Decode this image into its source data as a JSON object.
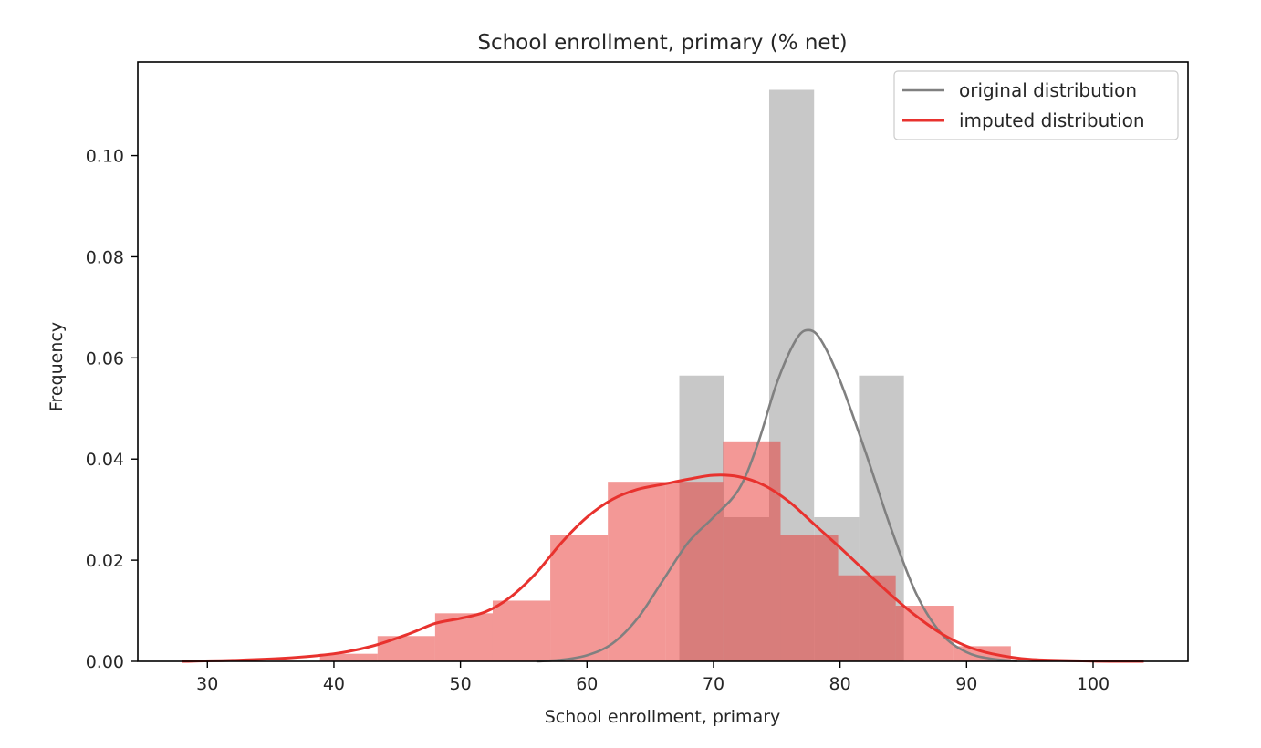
{
  "chart_data": {
    "type": "histogram",
    "title": "School enrollment, primary (% net)",
    "xlabel": "School enrollment, primary",
    "ylabel": "Frequency",
    "xlim": [
      24.5,
      107.5
    ],
    "ylim": [
      0,
      0.1185
    ],
    "xticks": [
      30,
      40,
      50,
      60,
      70,
      80,
      90,
      100
    ],
    "yticks": [
      0.0,
      0.02,
      0.04,
      0.06,
      0.08,
      0.1
    ],
    "ytick_labels": [
      "0.00",
      "0.02",
      "0.04",
      "0.06",
      "0.08",
      "0.10"
    ],
    "grid": false,
    "legend_position": "top-right",
    "series": [
      {
        "name": "original distribution",
        "color": "#808080",
        "hist_color": "#c8c8c8",
        "bins": [
          {
            "x0": 67.3,
            "x1": 70.85,
            "value": 0.0565
          },
          {
            "x0": 70.85,
            "x1": 74.4,
            "value": 0.0285
          },
          {
            "x0": 74.4,
            "x1": 77.95,
            "value": 0.113
          },
          {
            "x0": 77.95,
            "x1": 81.5,
            "value": 0.0285
          },
          {
            "x0": 81.5,
            "x1": 85.05,
            "value": 0.0565
          }
        ],
        "kde": [
          {
            "x": 56.0,
            "y": 0.0
          },
          {
            "x": 58.0,
            "y": 0.0003
          },
          {
            "x": 60.0,
            "y": 0.0012
          },
          {
            "x": 62.0,
            "y": 0.0035
          },
          {
            "x": 64.0,
            "y": 0.0085
          },
          {
            "x": 66.0,
            "y": 0.016
          },
          {
            "x": 68.0,
            "y": 0.0235
          },
          {
            "x": 70.0,
            "y": 0.0285
          },
          {
            "x": 72.0,
            "y": 0.034
          },
          {
            "x": 73.5,
            "y": 0.043
          },
          {
            "x": 75.0,
            "y": 0.055
          },
          {
            "x": 76.5,
            "y": 0.0635
          },
          {
            "x": 77.5,
            "y": 0.0655
          },
          {
            "x": 78.5,
            "y": 0.0635
          },
          {
            "x": 80.0,
            "y": 0.0555
          },
          {
            "x": 82.0,
            "y": 0.0415
          },
          {
            "x": 84.0,
            "y": 0.0265
          },
          {
            "x": 86.0,
            "y": 0.0135
          },
          {
            "x": 88.0,
            "y": 0.0055
          },
          {
            "x": 90.0,
            "y": 0.0018
          },
          {
            "x": 92.0,
            "y": 0.0005
          },
          {
            "x": 94.0,
            "y": 0.0001
          }
        ]
      },
      {
        "name": "imputed distribution",
        "color": "#e8322e",
        "hist_color": "#e8322e",
        "bins": [
          {
            "x0": 38.9,
            "x1": 43.45,
            "value": 0.0015
          },
          {
            "x0": 43.45,
            "x1": 48.0,
            "value": 0.005
          },
          {
            "x0": 48.0,
            "x1": 52.55,
            "value": 0.0095
          },
          {
            "x0": 52.55,
            "x1": 57.1,
            "value": 0.012
          },
          {
            "x0": 57.1,
            "x1": 61.65,
            "value": 0.025
          },
          {
            "x0": 61.65,
            "x1": 66.2,
            "value": 0.0355
          },
          {
            "x0": 66.2,
            "x1": 70.75,
            "value": 0.0355
          },
          {
            "x0": 70.75,
            "x1": 75.3,
            "value": 0.0435
          },
          {
            "x0": 75.3,
            "x1": 79.85,
            "value": 0.025
          },
          {
            "x0": 79.85,
            "x1": 84.4,
            "value": 0.017
          },
          {
            "x0": 84.4,
            "x1": 88.95,
            "value": 0.011
          },
          {
            "x0": 88.95,
            "x1": 93.5,
            "value": 0.003
          }
        ],
        "kde": [
          {
            "x": 28.0,
            "y": 0.0
          },
          {
            "x": 32.0,
            "y": 0.0002
          },
          {
            "x": 36.0,
            "y": 0.0006
          },
          {
            "x": 40.0,
            "y": 0.0015
          },
          {
            "x": 43.0,
            "y": 0.003
          },
          {
            "x": 46.0,
            "y": 0.0055
          },
          {
            "x": 48.0,
            "y": 0.0075
          },
          {
            "x": 50.0,
            "y": 0.0085
          },
          {
            "x": 52.0,
            "y": 0.0098
          },
          {
            "x": 54.0,
            "y": 0.0128
          },
          {
            "x": 56.0,
            "y": 0.0175
          },
          {
            "x": 58.0,
            "y": 0.0235
          },
          {
            "x": 60.0,
            "y": 0.0285
          },
          {
            "x": 62.0,
            "y": 0.032
          },
          {
            "x": 64.0,
            "y": 0.034
          },
          {
            "x": 66.0,
            "y": 0.035
          },
          {
            "x": 68.0,
            "y": 0.036
          },
          {
            "x": 70.0,
            "y": 0.0368
          },
          {
            "x": 72.0,
            "y": 0.0365
          },
          {
            "x": 74.0,
            "y": 0.0348
          },
          {
            "x": 76.0,
            "y": 0.0315
          },
          {
            "x": 78.0,
            "y": 0.027
          },
          {
            "x": 80.0,
            "y": 0.0225
          },
          {
            "x": 82.0,
            "y": 0.0178
          },
          {
            "x": 84.0,
            "y": 0.0132
          },
          {
            "x": 86.0,
            "y": 0.009
          },
          {
            "x": 88.0,
            "y": 0.0055
          },
          {
            "x": 90.0,
            "y": 0.003
          },
          {
            "x": 92.0,
            "y": 0.0015
          },
          {
            "x": 95.0,
            "y": 0.0004
          },
          {
            "x": 100.0,
            "y": 5e-05
          },
          {
            "x": 104.0,
            "y": 0.0
          }
        ]
      }
    ]
  }
}
